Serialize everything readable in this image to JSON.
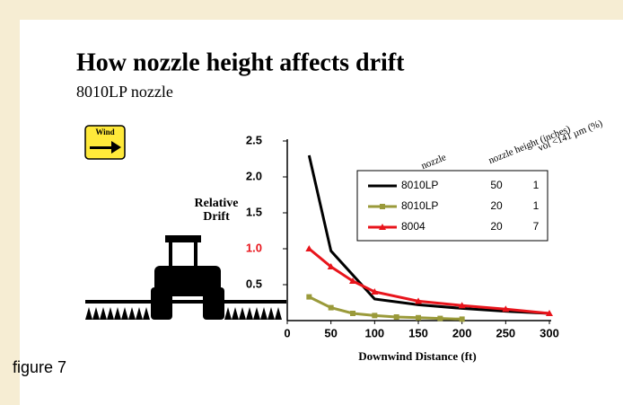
{
  "chart_data": {
    "type": "line",
    "title": "How nozzle height affects drift",
    "subtitle": "8010LP nozzle",
    "wind_label": "Wind",
    "ylabel": [
      "Relative",
      "Drift"
    ],
    "xlabel": "Downwind Distance (ft)",
    "caption": "figure 7",
    "xlim": [
      0,
      300
    ],
    "ylim": [
      0,
      2.5
    ],
    "xticks": [
      0,
      50,
      100,
      150,
      200,
      250,
      300
    ],
    "yticks": [
      0.5,
      {
        "value": 1,
        "label": "1.0",
        "color": "#e8141b"
      },
      1.5,
      {
        "value": 2,
        "label": "2.0"
      },
      2.5
    ],
    "legend_headers": [
      "nozzle",
      "nozzle height (inches)",
      "vol <141 µm (%)"
    ],
    "series": [
      {
        "name": "8010LP",
        "nozzle_height": 50,
        "vol_pct": 1,
        "color": "#000000",
        "marker": "none",
        "x": [
          25,
          50,
          100,
          150,
          200,
          250,
          300
        ],
        "values": [
          2.3,
          0.97,
          0.3,
          0.22,
          0.17,
          0.13,
          0.1
        ]
      },
      {
        "name": "8010LP",
        "nozzle_height": 20,
        "vol_pct": 1,
        "color": "#9a9a3a",
        "marker": "square",
        "x": [
          25,
          50,
          75,
          100,
          125,
          150,
          175,
          200
        ],
        "values": [
          0.33,
          0.18,
          0.1,
          0.07,
          0.05,
          0.04,
          0.03,
          0.02
        ]
      },
      {
        "name": "8004",
        "nozzle_height": 20,
        "vol_pct": 7,
        "color": "#e8141b",
        "marker": "triangle",
        "x": [
          25,
          50,
          75,
          100,
          150,
          200,
          250,
          300
        ],
        "values": [
          1.0,
          0.75,
          0.55,
          0.4,
          0.27,
          0.21,
          0.16,
          0.1
        ]
      }
    ]
  }
}
